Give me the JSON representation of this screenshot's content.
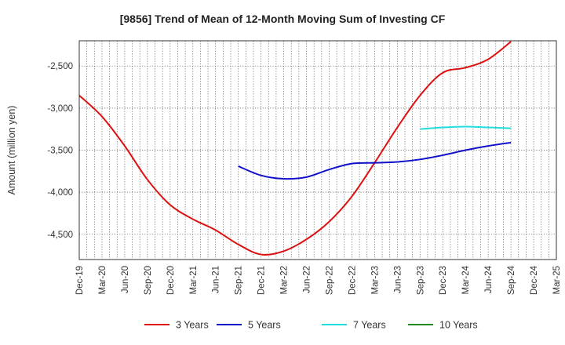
{
  "chart_data": {
    "type": "line",
    "title": "[9856]  Trend of Mean of 12-Month Moving Sum of Investing CF",
    "xlabel": "",
    "ylabel": "Amount (million yen)",
    "ylim": [
      -4800,
      -2200
    ],
    "yticks": [
      -2500,
      -3000,
      -3500,
      -4000,
      -4500
    ],
    "ytick_labels": [
      "-2,500",
      "-3,000",
      "-3,500",
      "-4,000",
      "-4,500"
    ],
    "x_categories": [
      "Dec-19",
      "Mar-20",
      "Jun-20",
      "Sep-20",
      "Dec-20",
      "Mar-21",
      "Jun-21",
      "Sep-21",
      "Dec-21",
      "Mar-22",
      "Jun-22",
      "Sep-22",
      "Dec-22",
      "Mar-23",
      "Jun-23",
      "Sep-23",
      "Dec-23",
      "Mar-24",
      "Jun-24",
      "Sep-24",
      "Dec-24",
      "Mar-25"
    ],
    "grid": true,
    "legend_position": "bottom",
    "series": [
      {
        "name": "3 Years",
        "color": "#dd1111",
        "start_index": 0,
        "values": [
          -2850,
          -3100,
          -3450,
          -3850,
          -4150,
          -4320,
          -4450,
          -4620,
          -4740,
          -4700,
          -4560,
          -4350,
          -4050,
          -3650,
          -3230,
          -2850,
          -2580,
          -2520,
          -2420,
          -2210
        ]
      },
      {
        "name": "5 Years",
        "color": "#1111cc",
        "start_index": 7,
        "values": [
          -3690,
          -3800,
          -3840,
          -3820,
          -3730,
          -3660,
          -3650,
          -3640,
          -3610,
          -3560,
          -3500,
          -3450,
          -3410
        ]
      },
      {
        "name": "7 Years",
        "color": "#22dddd",
        "start_index": 15,
        "values": [
          -3250,
          -3230,
          -3220,
          -3230,
          -3240
        ]
      },
      {
        "name": "10 Years",
        "color": "#228822",
        "start_index": 0,
        "values": []
      }
    ]
  }
}
